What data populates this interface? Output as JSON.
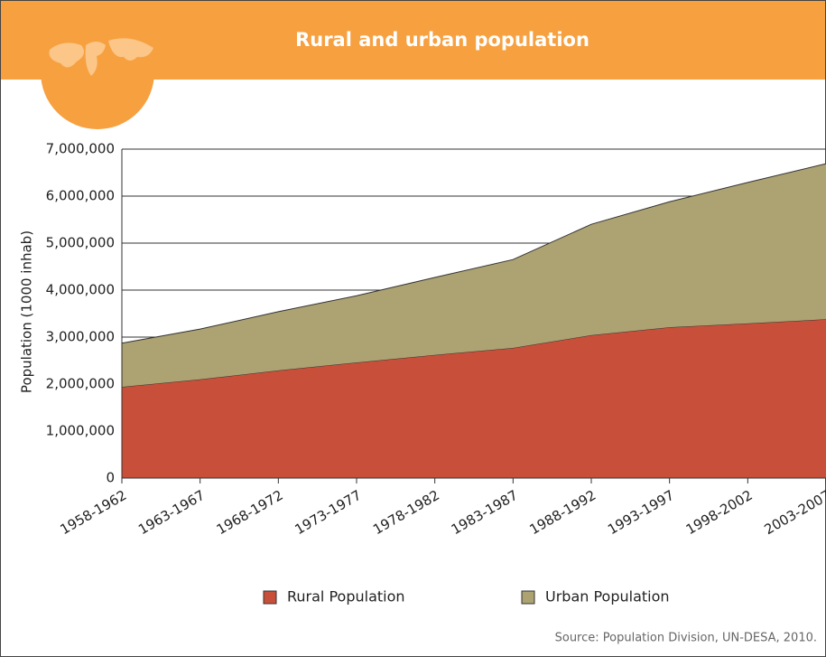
{
  "chart_data": {
    "type": "area",
    "stacked": true,
    "title": "Rural and urban population",
    "y_label": "Population (1000 inhab)",
    "source": "Source: Population Division, UN-DESA, 2010.",
    "categories": [
      "1958-1962",
      "1963-1967",
      "1968-1972",
      "1973-1977",
      "1978-1982",
      "1983-1987",
      "1988-1992",
      "1993-1997",
      "1998-2002",
      "2003-2007"
    ],
    "series": [
      {
        "name": "Rural Population",
        "color": "#c8503a",
        "values": [
          1940000,
          2100000,
          2290000,
          2460000,
          2620000,
          2770000,
          3040000,
          3210000,
          3290000,
          3380000
        ]
      },
      {
        "name": "Urban Population",
        "color": "#ada272",
        "values": [
          930000,
          1070000,
          1250000,
          1420000,
          1650000,
          1880000,
          2360000,
          2670000,
          3000000,
          3310000
        ]
      }
    ],
    "ylim": [
      0,
      7000000
    ],
    "yticks": [
      0,
      {
        "value": 1000000,
        "label": "1,000,000"
      },
      {
        "value": 2000000,
        "label": "2,000,000"
      },
      {
        "value": 3000000,
        "label": "3,000,000"
      },
      {
        "value": 4000000,
        "label": "4,000,000"
      },
      {
        "value": 5000000,
        "label": "5,000,000"
      },
      {
        "value": 6000000,
        "label": "6,000,000"
      },
      {
        "value": 7000000,
        "label": "7,000,000"
      }
    ],
    "grid": true,
    "legend": "bottom"
  }
}
